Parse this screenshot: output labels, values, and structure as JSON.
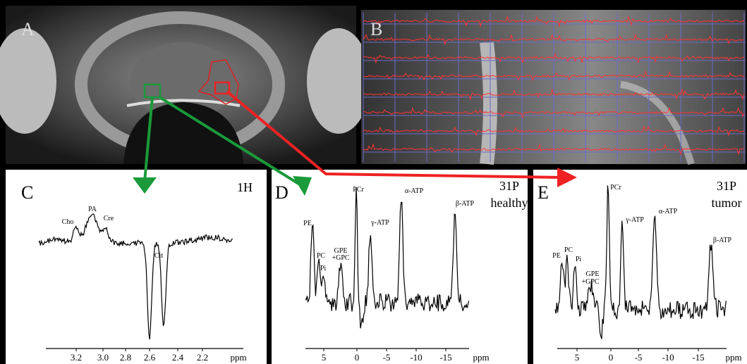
{
  "panels": [
    {
      "label": "A"
    },
    {
      "label": "B"
    },
    {
      "label": "C",
      "nucleus": "1H",
      "peaks": [
        "Cho",
        "PA",
        "Cre",
        "Cit"
      ],
      "axis": {
        "ticks": [
          "3.2",
          "3.0",
          "2.8",
          "2.6",
          "2.4",
          "2.2"
        ],
        "unit": "ppm"
      }
    },
    {
      "label": "D",
      "nucleus": "31P",
      "tissue": "healthy",
      "peaks": [
        "PE",
        "PC",
        "Pi",
        "GPE",
        "+GPC",
        "PCr",
        "γ-ATP",
        "α-ATP",
        "β-ATP"
      ],
      "axis": {
        "ticks": [
          "5",
          "0",
          "-5",
          "-10",
          "-15"
        ],
        "unit": "ppm"
      }
    },
    {
      "label": "E",
      "nucleus": "31P",
      "tissue": "tumor",
      "peaks": [
        "PE",
        "PC",
        "Pi",
        "GPE",
        "+GPC",
        "PCr",
        "γ-ATP",
        "α-ATP",
        "β-ATP"
      ],
      "axis": {
        "ticks": [
          "5",
          "0",
          "-5",
          "-10",
          "-15"
        ],
        "unit": "ppm"
      }
    }
  ]
}
